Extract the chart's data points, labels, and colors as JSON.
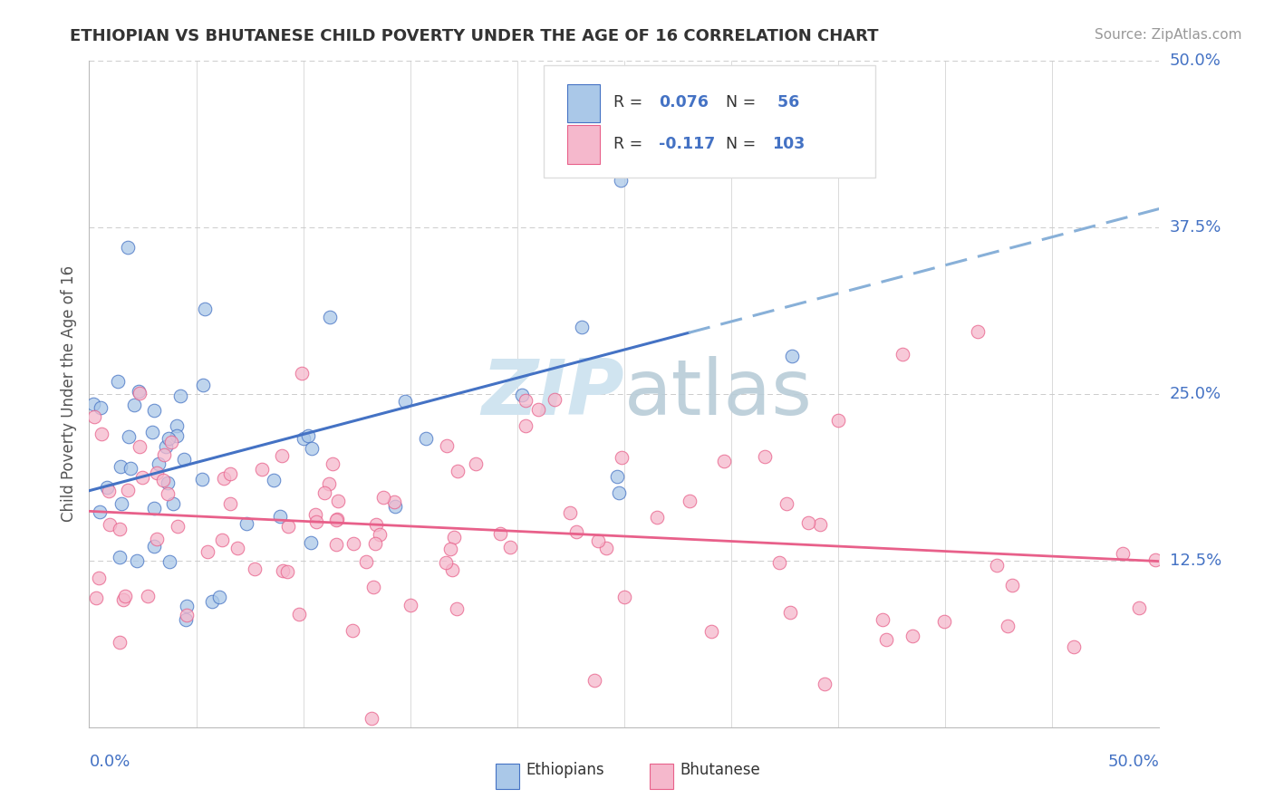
{
  "title": "ETHIOPIAN VS BHUTANESE CHILD POVERTY UNDER THE AGE OF 16 CORRELATION CHART",
  "source": "Source: ZipAtlas.com",
  "ylabel": "Child Poverty Under the Age of 16",
  "xlim": [
    0.0,
    0.5
  ],
  "ylim": [
    0.0,
    0.5
  ],
  "r_ethiopian": 0.076,
  "n_ethiopian": 56,
  "r_bhutanese": -0.117,
  "n_bhutanese": 103,
  "color_ethiopian": "#aac8e8",
  "color_bhutanese": "#f5b8cc",
  "trendline_ethiopian_solid": "#4472c4",
  "trendline_ethiopian_dashed": "#88b0d8",
  "trendline_bhutanese": "#e8608a",
  "watermark_color": "#d0e4f0",
  "background_color": "#ffffff",
  "grid_color": "#cccccc",
  "axis_color": "#bbbbbb",
  "right_label_color": "#4472c4",
  "text_color": "#333333",
  "source_color": "#999999",
  "ylabel_color": "#555555"
}
